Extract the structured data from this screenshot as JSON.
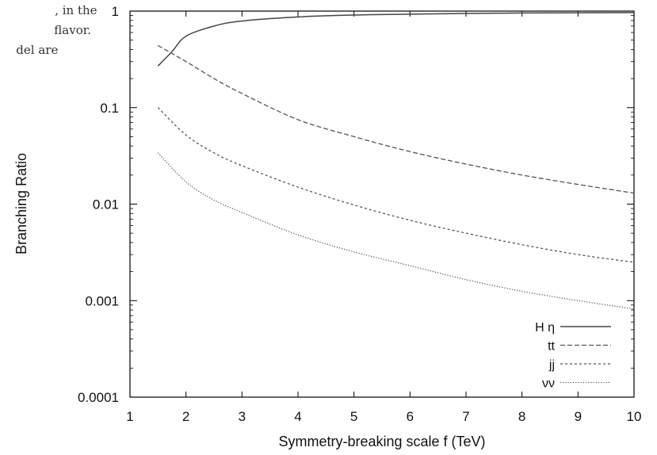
{
  "page_text": {
    "snippet_lines": [
      ", in the",
      "flavor.",
      "del are"
    ]
  },
  "chart_data": {
    "type": "line",
    "title": "",
    "xlabel": "Symmetry-breaking scale f (TeV)",
    "ylabel": "Branching Ratio",
    "xlim": [
      1,
      10
    ],
    "ylim": [
      0.0001,
      1
    ],
    "yscale": "log",
    "grid": false,
    "legend_position": "bottom-right",
    "x_ticks": [
      "1",
      "2",
      "3",
      "4",
      "5",
      "6",
      "7",
      "8",
      "9",
      "10"
    ],
    "y_ticks": [
      "0.0001",
      "0.001",
      "0.01",
      "0.1",
      "1"
    ],
    "series": [
      {
        "name": "H η",
        "style": "solid",
        "x": [
          1.5,
          1.75,
          2,
          2.5,
          3,
          4,
          5,
          6,
          7,
          8,
          9,
          10
        ],
        "y": [
          0.27,
          0.38,
          0.55,
          0.7,
          0.79,
          0.87,
          0.91,
          0.93,
          0.945,
          0.955,
          0.96,
          0.965
        ]
      },
      {
        "name": "tt",
        "style": "dashed",
        "x": [
          1.5,
          2,
          2.5,
          3,
          4,
          5,
          6,
          7,
          8,
          9,
          10
        ],
        "y": [
          0.44,
          0.3,
          0.2,
          0.14,
          0.075,
          0.05,
          0.035,
          0.026,
          0.02,
          0.016,
          0.013
        ]
      },
      {
        "name": "jj",
        "style": "short-dashed",
        "x": [
          1.5,
          2,
          2.5,
          3,
          4,
          5,
          6,
          7,
          8,
          9,
          10
        ],
        "y": [
          0.1,
          0.052,
          0.034,
          0.025,
          0.015,
          0.0098,
          0.0068,
          0.005,
          0.0038,
          0.003,
          0.0025
        ]
      },
      {
        "name": "νν",
        "style": "dotted",
        "x": [
          1.5,
          2,
          2.5,
          3,
          4,
          5,
          6,
          7,
          8,
          9,
          10
        ],
        "y": [
          0.034,
          0.017,
          0.011,
          0.0082,
          0.0048,
          0.0032,
          0.0023,
          0.00165,
          0.00125,
          0.001,
          0.00082
        ]
      }
    ]
  }
}
